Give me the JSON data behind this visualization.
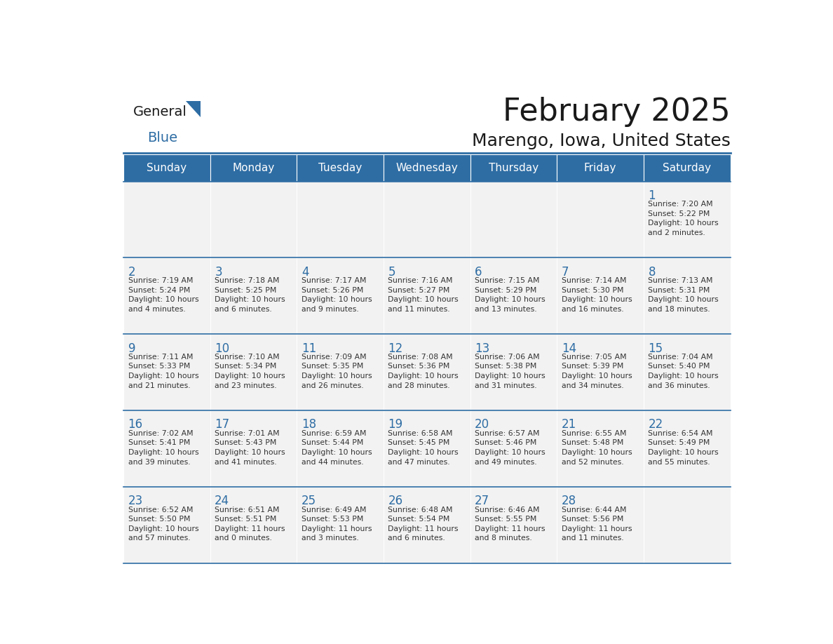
{
  "title": "February 2025",
  "subtitle": "Marengo, Iowa, United States",
  "header_color": "#2e6da4",
  "header_text_color": "#ffffff",
  "cell_bg_color": "#f2f2f2",
  "border_color": "#2e6da4",
  "title_color": "#1a1a1a",
  "subtitle_color": "#1a1a1a",
  "day_number_color": "#2e6da4",
  "cell_text_color": "#333333",
  "days_of_week": [
    "Sunday",
    "Monday",
    "Tuesday",
    "Wednesday",
    "Thursday",
    "Friday",
    "Saturday"
  ],
  "calendar": [
    [
      null,
      null,
      null,
      null,
      null,
      null,
      {
        "day": 1,
        "sunrise": "7:20 AM",
        "sunset": "5:22 PM",
        "daylight": "10 hours\nand 2 minutes."
      }
    ],
    [
      {
        "day": 2,
        "sunrise": "7:19 AM",
        "sunset": "5:24 PM",
        "daylight": "10 hours\nand 4 minutes."
      },
      {
        "day": 3,
        "sunrise": "7:18 AM",
        "sunset": "5:25 PM",
        "daylight": "10 hours\nand 6 minutes."
      },
      {
        "day": 4,
        "sunrise": "7:17 AM",
        "sunset": "5:26 PM",
        "daylight": "10 hours\nand 9 minutes."
      },
      {
        "day": 5,
        "sunrise": "7:16 AM",
        "sunset": "5:27 PM",
        "daylight": "10 hours\nand 11 minutes."
      },
      {
        "day": 6,
        "sunrise": "7:15 AM",
        "sunset": "5:29 PM",
        "daylight": "10 hours\nand 13 minutes."
      },
      {
        "day": 7,
        "sunrise": "7:14 AM",
        "sunset": "5:30 PM",
        "daylight": "10 hours\nand 16 minutes."
      },
      {
        "day": 8,
        "sunrise": "7:13 AM",
        "sunset": "5:31 PM",
        "daylight": "10 hours\nand 18 minutes."
      }
    ],
    [
      {
        "day": 9,
        "sunrise": "7:11 AM",
        "sunset": "5:33 PM",
        "daylight": "10 hours\nand 21 minutes."
      },
      {
        "day": 10,
        "sunrise": "7:10 AM",
        "sunset": "5:34 PM",
        "daylight": "10 hours\nand 23 minutes."
      },
      {
        "day": 11,
        "sunrise": "7:09 AM",
        "sunset": "5:35 PM",
        "daylight": "10 hours\nand 26 minutes."
      },
      {
        "day": 12,
        "sunrise": "7:08 AM",
        "sunset": "5:36 PM",
        "daylight": "10 hours\nand 28 minutes."
      },
      {
        "day": 13,
        "sunrise": "7:06 AM",
        "sunset": "5:38 PM",
        "daylight": "10 hours\nand 31 minutes."
      },
      {
        "day": 14,
        "sunrise": "7:05 AM",
        "sunset": "5:39 PM",
        "daylight": "10 hours\nand 34 minutes."
      },
      {
        "day": 15,
        "sunrise": "7:04 AM",
        "sunset": "5:40 PM",
        "daylight": "10 hours\nand 36 minutes."
      }
    ],
    [
      {
        "day": 16,
        "sunrise": "7:02 AM",
        "sunset": "5:41 PM",
        "daylight": "10 hours\nand 39 minutes."
      },
      {
        "day": 17,
        "sunrise": "7:01 AM",
        "sunset": "5:43 PM",
        "daylight": "10 hours\nand 41 minutes."
      },
      {
        "day": 18,
        "sunrise": "6:59 AM",
        "sunset": "5:44 PM",
        "daylight": "10 hours\nand 44 minutes."
      },
      {
        "day": 19,
        "sunrise": "6:58 AM",
        "sunset": "5:45 PM",
        "daylight": "10 hours\nand 47 minutes."
      },
      {
        "day": 20,
        "sunrise": "6:57 AM",
        "sunset": "5:46 PM",
        "daylight": "10 hours\nand 49 minutes."
      },
      {
        "day": 21,
        "sunrise": "6:55 AM",
        "sunset": "5:48 PM",
        "daylight": "10 hours\nand 52 minutes."
      },
      {
        "day": 22,
        "sunrise": "6:54 AM",
        "sunset": "5:49 PM",
        "daylight": "10 hours\nand 55 minutes."
      }
    ],
    [
      {
        "day": 23,
        "sunrise": "6:52 AM",
        "sunset": "5:50 PM",
        "daylight": "10 hours\nand 57 minutes."
      },
      {
        "day": 24,
        "sunrise": "6:51 AM",
        "sunset": "5:51 PM",
        "daylight": "11 hours\nand 0 minutes."
      },
      {
        "day": 25,
        "sunrise": "6:49 AM",
        "sunset": "5:53 PM",
        "daylight": "11 hours\nand 3 minutes."
      },
      {
        "day": 26,
        "sunrise": "6:48 AM",
        "sunset": "5:54 PM",
        "daylight": "11 hours\nand 6 minutes."
      },
      {
        "day": 27,
        "sunrise": "6:46 AM",
        "sunset": "5:55 PM",
        "daylight": "11 hours\nand 8 minutes."
      },
      {
        "day": 28,
        "sunrise": "6:44 AM",
        "sunset": "5:56 PM",
        "daylight": "11 hours\nand 11 minutes."
      },
      null
    ]
  ],
  "logo_text_general": "General",
  "logo_text_blue": "Blue",
  "logo_general_color": "#1a1a1a",
  "logo_blue_color": "#2e6da4",
  "logo_triangle_color": "#2e6da4"
}
